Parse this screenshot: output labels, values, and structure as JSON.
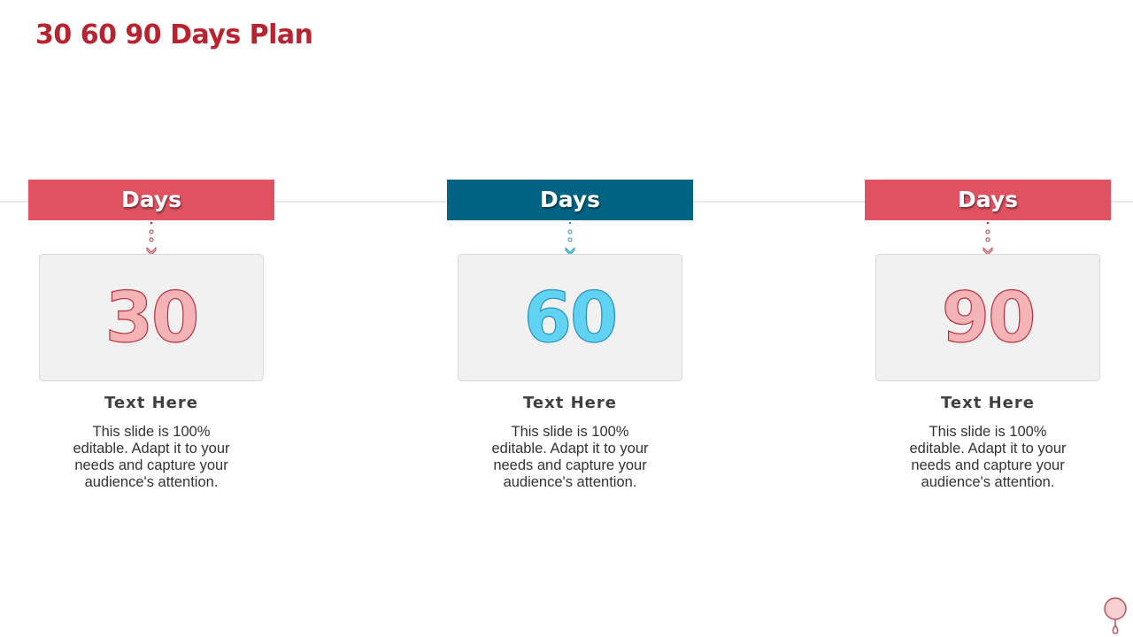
{
  "title": "30 60 90 Days Plan",
  "columns": [
    {
      "banner": "Days",
      "number": "30",
      "heading": "Text Here",
      "body": "This slide is 100% editable. Adapt it to your needs and capture your audience's attention.",
      "banner_color": "#e05260",
      "number_fill": "#f4b3b7",
      "number_stroke": "#b8323c"
    },
    {
      "banner": "Days",
      "number": "60",
      "heading": "Text Here",
      "body": "This slide is 100% editable. Adapt it to your needs and capture your audience's attention.",
      "banner_color": "#006384",
      "number_fill": "#5fd3f1",
      "number_stroke": "#2a8fc0"
    },
    {
      "banner": "Days",
      "number": "90",
      "heading": "Text Here",
      "body": "This slide is 100% editable. Adapt it to your needs and capture your audience's attention.",
      "banner_color": "#e05260",
      "number_fill": "#f4b3b7",
      "number_stroke": "#b8323c"
    }
  ],
  "logo_icon": "pin-logo-icon"
}
